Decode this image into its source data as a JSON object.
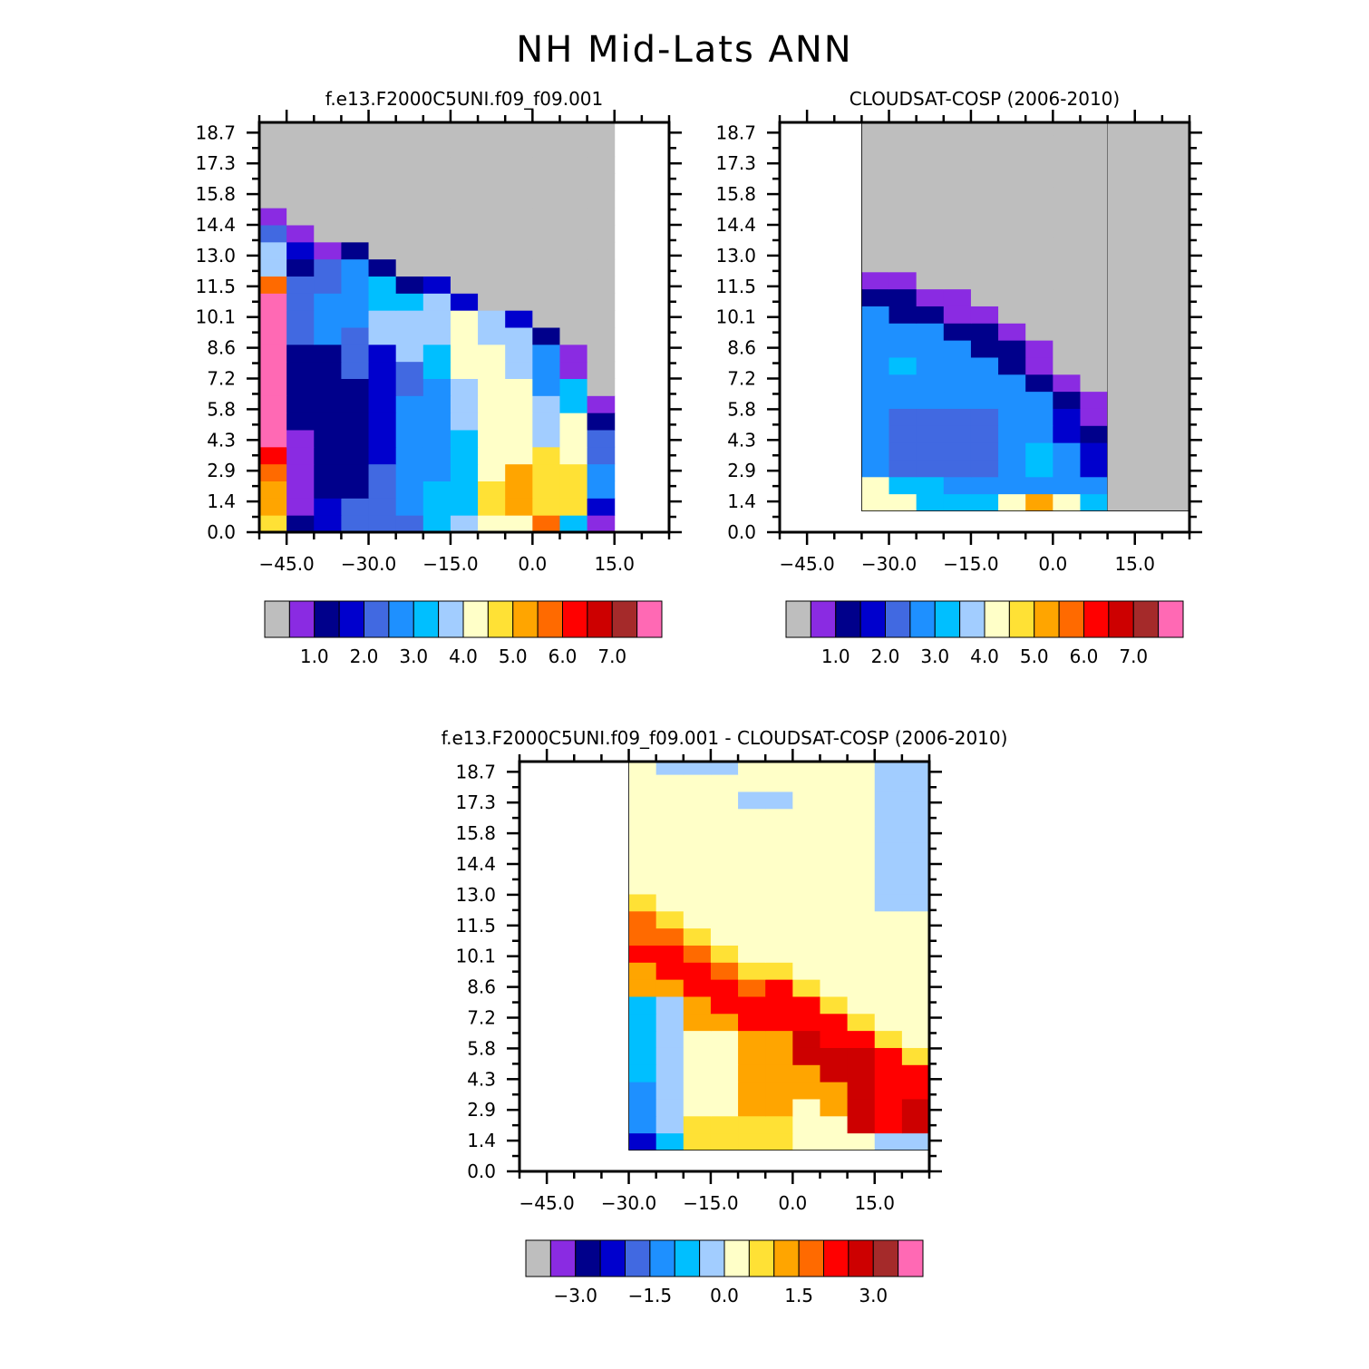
{
  "figure": {
    "title": "NH Mid-Lats ANN"
  },
  "chart_data": [
    {
      "type": "heatmap",
      "title": "f.e13.F2000C5UNI.f09_f09.001",
      "x_ticks": [
        "-45.0",
        "-30.0",
        "-15.0",
        "0.0",
        "15.0"
      ],
      "y_ticks": [
        "0.0",
        "1.4",
        "2.9",
        "4.3",
        "5.8",
        "7.2",
        "8.6",
        "10.1",
        "11.5",
        "13.0",
        "14.4",
        "15.8",
        "17.3",
        "18.7"
      ],
      "xlim": [
        -50,
        25
      ],
      "ylim": [
        0,
        19.2
      ],
      "colorbar": {
        "colors": [
          "#bebebe",
          "#8a2be2",
          "#00008b",
          "#0000cd",
          "#4169e1",
          "#1e90ff",
          "#00bfff",
          "#a2cdff",
          "#ffffc8",
          "#ffe135",
          "#ffa500",
          "#ff6a00",
          "#ff0000",
          "#cd0000",
          "#a52a2a",
          "#ff69b4"
        ],
        "labels": [
          "1.0",
          "2.0",
          "3.0",
          "4.0",
          "5.0",
          "6.0",
          "7.0"
        ]
      }
    },
    {
      "type": "heatmap",
      "title": "CLOUDSAT-COSP (2006-2010)",
      "x_ticks": [
        "-45.0",
        "-30.0",
        "-15.0",
        "0.0",
        "15.0"
      ],
      "y_ticks": [
        "0.0",
        "1.4",
        "2.9",
        "4.3",
        "5.8",
        "7.2",
        "8.6",
        "10.1",
        "11.5",
        "13.0",
        "14.4",
        "15.8",
        "17.3",
        "18.7"
      ],
      "xlim": [
        -50,
        25
      ],
      "ylim": [
        0,
        19.2
      ],
      "colorbar": {
        "colors": [
          "#bebebe",
          "#8a2be2",
          "#00008b",
          "#0000cd",
          "#4169e1",
          "#1e90ff",
          "#00bfff",
          "#a2cdff",
          "#ffffc8",
          "#ffe135",
          "#ffa500",
          "#ff6a00",
          "#ff0000",
          "#cd0000",
          "#a52a2a",
          "#ff69b4"
        ],
        "labels": [
          "1.0",
          "2.0",
          "3.0",
          "4.0",
          "5.0",
          "6.0",
          "7.0"
        ]
      }
    },
    {
      "type": "heatmap",
      "title": "f.e13.F2000C5UNI.f09_f09.001 - CLOUDSAT-COSP (2006-2010)",
      "x_ticks": [
        "-45.0",
        "-30.0",
        "-15.0",
        "0.0",
        "15.0"
      ],
      "y_ticks": [
        "0.0",
        "1.4",
        "2.9",
        "4.3",
        "5.8",
        "7.2",
        "8.6",
        "10.1",
        "11.5",
        "13.0",
        "14.4",
        "15.8",
        "17.3",
        "18.7"
      ],
      "xlim": [
        -50,
        25
      ],
      "ylim": [
        0,
        19.2
      ],
      "colorbar": {
        "colors": [
          "#bebebe",
          "#8a2be2",
          "#00008b",
          "#0000cd",
          "#4169e1",
          "#1e90ff",
          "#00bfff",
          "#a2cdff",
          "#ffffc8",
          "#ffe135",
          "#ffa500",
          "#ff6a00",
          "#ff0000",
          "#cd0000",
          "#a52a2a",
          "#ff69b4"
        ],
        "labels": [
          "-3.0",
          "-1.5",
          "0.0",
          "1.5",
          "3.0"
        ]
      }
    }
  ]
}
